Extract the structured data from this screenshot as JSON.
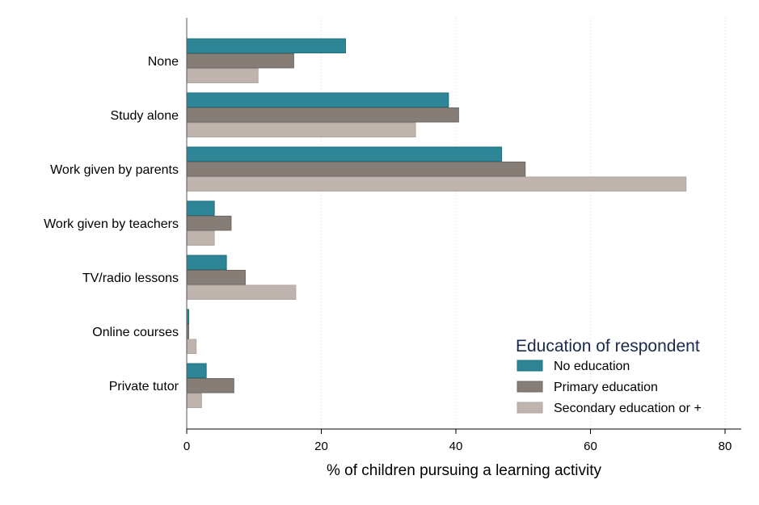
{
  "chart_data": {
    "type": "bar",
    "orientation": "horizontal",
    "title": "",
    "xlabel": "% of children pursuing a learning activity",
    "ylabel": "",
    "xlim": [
      0,
      82
    ],
    "xticks": [
      0,
      20,
      40,
      60,
      80
    ],
    "grid": "vertical dotted",
    "categories": [
      "None",
      "Study alone",
      "Work given by parents",
      "Work given by teachers",
      "TV/radio lessons",
      "Online courses",
      "Private tutor"
    ],
    "legend": {
      "title": "Education of respondent",
      "placement": "bottom-right"
    },
    "series": [
      {
        "name": "No education",
        "color": "#2e8596",
        "values": [
          23.6,
          38.9,
          46.8,
          4.1,
          5.9,
          0.3,
          2.9
        ]
      },
      {
        "name": "Primary education",
        "color": "#857d76",
        "values": [
          15.9,
          40.4,
          50.3,
          6.6,
          8.7,
          0.3,
          7.0
        ]
      },
      {
        "name": "Secondary education or +",
        "color": "#bfb5ae",
        "values": [
          10.6,
          34.0,
          74.2,
          4.1,
          16.2,
          1.4,
          2.2
        ]
      }
    ]
  }
}
